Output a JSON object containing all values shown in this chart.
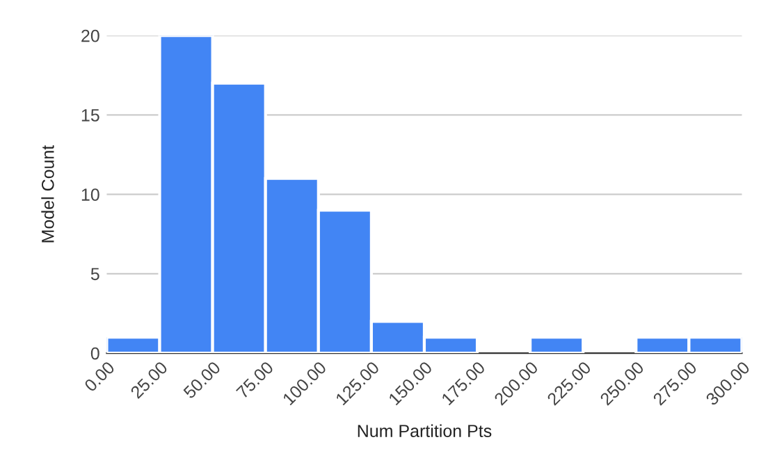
{
  "chart_data": {
    "type": "histogram",
    "xlabel": "Num Partition Pts",
    "ylabel": "Model Count",
    "bins": [
      0,
      25,
      50,
      75,
      100,
      125,
      150,
      175,
      200,
      225,
      250,
      275,
      300
    ],
    "values": [
      1,
      20,
      17,
      11,
      9,
      2,
      1,
      0,
      1,
      0,
      1,
      1
    ],
    "color": "#4285f4",
    "xlim": [
      0,
      300
    ],
    "xticks": [
      {
        "value": 0,
        "label": "0.00"
      },
      {
        "value": 25,
        "label": "25.00"
      },
      {
        "value": 50,
        "label": "50.00"
      },
      {
        "value": 75,
        "label": "75.00"
      },
      {
        "value": 100,
        "label": "100.00"
      },
      {
        "value": 125,
        "label": "125.00"
      },
      {
        "value": 150,
        "label": "150.00"
      },
      {
        "value": 175,
        "label": "175.00"
      },
      {
        "value": 200,
        "label": "200.00"
      },
      {
        "value": 225,
        "label": "225.00"
      },
      {
        "value": 250,
        "label": "250.00"
      },
      {
        "value": 275,
        "label": "275.00"
      },
      {
        "value": 300,
        "label": "300.00"
      }
    ],
    "ylim": [
      0,
      20
    ],
    "yticks": [
      0,
      5,
      10,
      15,
      20
    ],
    "grid": "y"
  }
}
